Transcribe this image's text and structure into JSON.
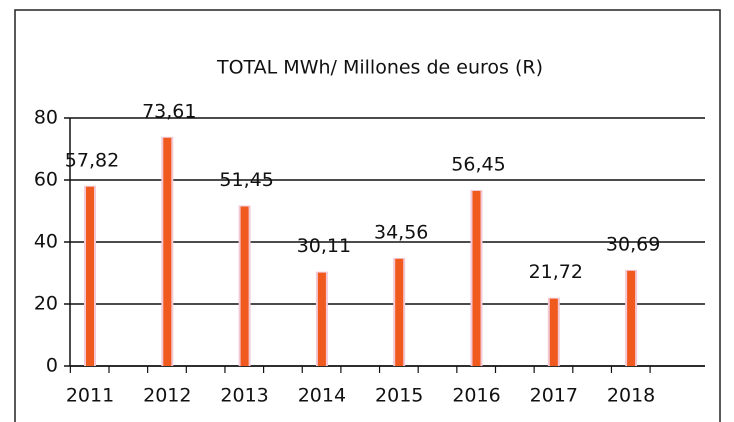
{
  "chart_data": {
    "type": "bar",
    "title": "TOTAL MWh/ Millones de euros (R)",
    "categories": [
      "2011",
      "2012",
      "2013",
      "2014",
      "2015",
      "2016",
      "2017",
      "2018"
    ],
    "values": [
      57.82,
      73.61,
      51.45,
      30.11,
      34.56,
      56.45,
      21.72,
      30.69
    ],
    "value_labels": [
      "57,82",
      "73,61",
      "51,45",
      "30,11",
      "34,56",
      "56,45",
      "21,72",
      "30,69"
    ],
    "color": "#f05a1e",
    "ylim": [
      0,
      80
    ],
    "yticks": [
      0,
      20,
      40,
      60,
      80
    ],
    "grid": true
  }
}
